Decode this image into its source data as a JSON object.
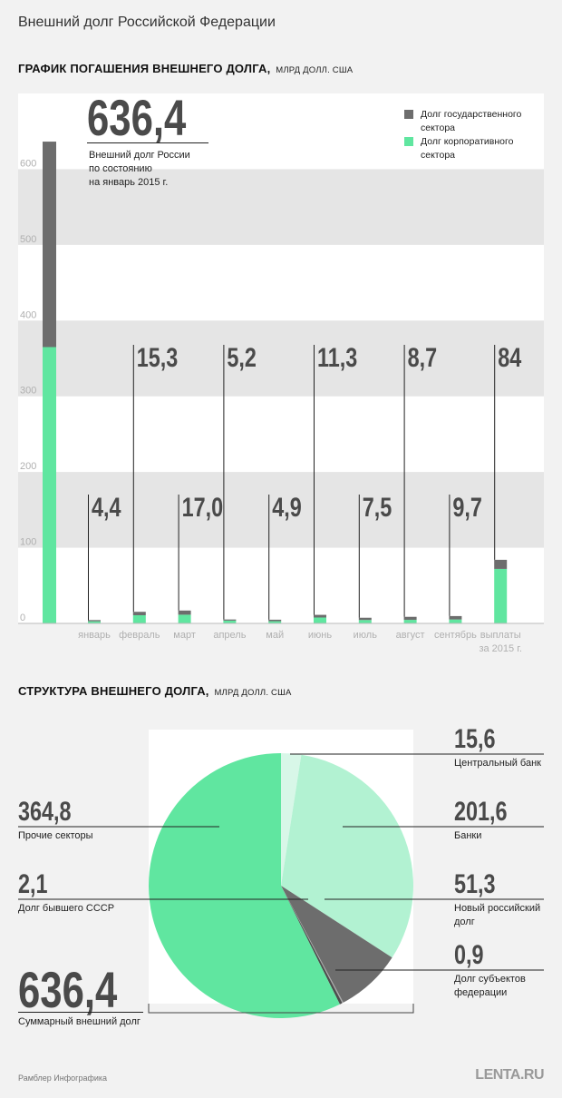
{
  "page": {
    "title": "Внешний долг Российской Федерации",
    "footer_left": "Рамблер Инфографика",
    "footer_right": "LENTA.RU"
  },
  "colors": {
    "government": "#6d6d6d",
    "corporate": "#60e6a0",
    "band": "#e5e5e5",
    "pie_light": "#b2f2d2",
    "pie_pale": "#d8f7e8"
  },
  "bar_section": {
    "title": "ГРАФИК ПОГАШЕНИЯ ВНЕШНЕГО ДОЛГА,",
    "unit": "МЛРД ДОЛЛ. США",
    "total_value": "636,4",
    "total_caption": "Внешний долг России по состоянию на январь 2015 г.",
    "total_caption_lines": [
      "Внешний долг России",
      "по состоянию",
      "на январь 2015 г."
    ],
    "legend": [
      {
        "key": "government",
        "lines": [
          "Долг государственного",
          "сектора"
        ]
      },
      {
        "key": "corporate",
        "lines": [
          "Долг корпоративного",
          "сектора"
        ]
      }
    ]
  },
  "pie_section": {
    "title": "СТРУКТУРА ВНЕШНЕГО ДОЛГА,",
    "unit": "МЛРД ДОЛЛ. США",
    "total_value": "636,4",
    "total_caption": "Суммарный внешний долг"
  },
  "chart_data": [
    {
      "type": "bar",
      "stacked": true,
      "ylim": [
        0,
        700
      ],
      "yticks": [
        0,
        100,
        200,
        300,
        400,
        500,
        600
      ],
      "grid": "alternating horizontal bands",
      "legend_position": "top-right",
      "total_bar": {
        "corporate": 365,
        "government": 271,
        "total": 636.4
      },
      "categories": [
        {
          "label": "январь",
          "value_label": "4,4",
          "total": 4.4,
          "government": 1.6,
          "corporate": 2.8
        },
        {
          "label": "февраль",
          "value_label": "15,3",
          "total": 15.3,
          "government": 4.5,
          "corporate": 10.8
        },
        {
          "label": "март",
          "value_label": "17,0",
          "total": 17.0,
          "government": 5.5,
          "corporate": 11.5
        },
        {
          "label": "апрель",
          "value_label": "5,2",
          "total": 5.2,
          "government": 1.5,
          "corporate": 3.7
        },
        {
          "label": "май",
          "value_label": "4,9",
          "total": 4.9,
          "government": 2.0,
          "corporate": 2.9
        },
        {
          "label": "июнь",
          "value_label": "11,3",
          "total": 11.3,
          "government": 3.5,
          "corporate": 7.8
        },
        {
          "label": "июль",
          "value_label": "7,5",
          "total": 7.5,
          "government": 3.0,
          "corporate": 4.5
        },
        {
          "label": "август",
          "value_label": "8,7",
          "total": 8.7,
          "government": 4.0,
          "corporate": 4.7
        },
        {
          "label": "сентябрь",
          "value_label": "9,7",
          "total": 9.7,
          "government": 4.5,
          "corporate": 5.2
        },
        {
          "label": "выплаты за 2015 г.",
          "label_lines": [
            "выплаты",
            "за 2015 г."
          ],
          "value_label": "84",
          "total": 84,
          "government": 12,
          "corporate": 72
        }
      ]
    },
    {
      "type": "pie",
      "slices": [
        {
          "name": "Центральный банк",
          "label_lines": [
            "Центральный банк"
          ],
          "value": 15.6,
          "value_label": "15,6",
          "color": "#d8f7e8"
        },
        {
          "name": "Банки",
          "label_lines": [
            "Банки"
          ],
          "value": 201.6,
          "value_label": "201,6",
          "color": "#b2f2d2"
        },
        {
          "name": "Новый российский долг",
          "label_lines": [
            "Новый российский",
            "долг"
          ],
          "value": 51.3,
          "value_label": "51,3",
          "color": "#6d6d6d"
        },
        {
          "name": "Долг субъектов федерации",
          "label_lines": [
            "Долг субъектов",
            "федерации"
          ],
          "value": 0.9,
          "value_label": "0,9",
          "color": "#a8a8a8"
        },
        {
          "name": "Долг бывшего СССР",
          "label_lines": [
            "Долг бывшего СССР"
          ],
          "value": 2.1,
          "value_label": "2,1",
          "color": "#4d4d4d"
        },
        {
          "name": "Прочие секторы",
          "label_lines": [
            "Прочие секторы"
          ],
          "value": 364.8,
          "value_label": "364,8",
          "color": "#60e6a0"
        }
      ],
      "total": 636.4
    }
  ]
}
